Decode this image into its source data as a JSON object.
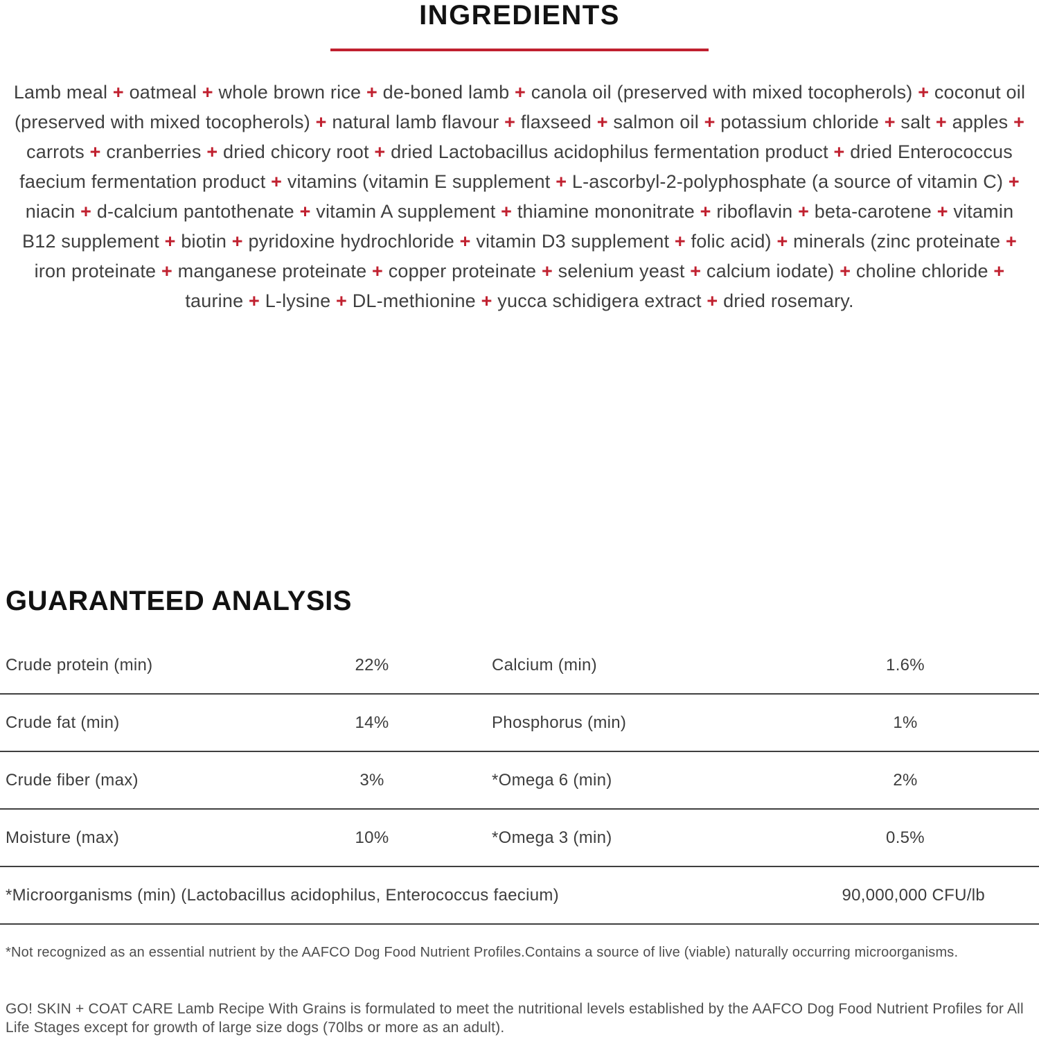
{
  "accent_color": "#c0202f",
  "ingredients_section": {
    "title": "INGREDIENTS",
    "separator": "+",
    "terminator": ".",
    "items": [
      "Lamb meal",
      "oatmeal",
      "whole brown rice",
      "de-boned lamb",
      "canola oil (preserved with mixed tocopherols)",
      "coconut oil (preserved with mixed tocopherols)",
      "natural lamb flavour",
      "flaxseed",
      "salmon oil",
      "potassium chloride",
      "salt",
      "apples",
      "carrots",
      "cranberries",
      "dried chicory root",
      "dried Lactobacillus acidophilus fermentation product",
      "dried Enterococcus faecium fermentation product",
      "vitamins (vitamin E supplement",
      "L-ascorbyl-2-polyphosphate (a source of vitamin C)",
      "niacin",
      "d-calcium pantothenate",
      "vitamin A supplement",
      "thiamine mononitrate",
      "riboflavin",
      "beta-carotene",
      "vitamin B12 supplement",
      "biotin",
      "pyridoxine hydrochloride",
      "vitamin D3 supplement",
      "folic acid)",
      "minerals (zinc proteinate",
      "iron proteinate",
      "manganese proteinate",
      "copper proteinate",
      "selenium yeast",
      "calcium iodate)",
      "choline chloride",
      "taurine",
      "L-lysine",
      "DL-methionine",
      "yucca schidigera extract",
      "dried rosemary"
    ]
  },
  "analysis_section": {
    "title": "GUARANTEED ANALYSIS",
    "rows": [
      {
        "label_left": "Crude protein (min)",
        "value_left": "22%",
        "label_right": "Calcium (min)",
        "value_right": "1.6%"
      },
      {
        "label_left": "Crude fat (min)",
        "value_left": "14%",
        "label_right": "Phosphorus (min)",
        "value_right": "1%"
      },
      {
        "label_left": "Crude fiber (max)",
        "value_left": "3%",
        "label_right": "*Omega 6 (min)",
        "value_right": "2%"
      },
      {
        "label_left": "Moisture (max)",
        "value_left": "10%",
        "label_right": "*Omega 3 (min)",
        "value_right": "0.5%"
      }
    ],
    "microorganisms_row": {
      "label": "*Microorganisms (min) (Lactobacillus acidophilus, Enterococcus faecium)",
      "value": "90,000,000 CFU/lb"
    }
  },
  "footnotes": {
    "asterisk_note": "*Not recognized as an essential nutrient by the AAFCO Dog Food Nutrient Profiles.Contains a source of live (viable) naturally occurring microorganisms.",
    "aafco_statement": "GO! SKIN + COAT CARE Lamb Recipe With Grains is formulated to meet the nutritional levels established by the AAFCO Dog Food Nutrient Profiles for All Life Stages except for growth of large size dogs (70lbs or more as an adult)."
  }
}
